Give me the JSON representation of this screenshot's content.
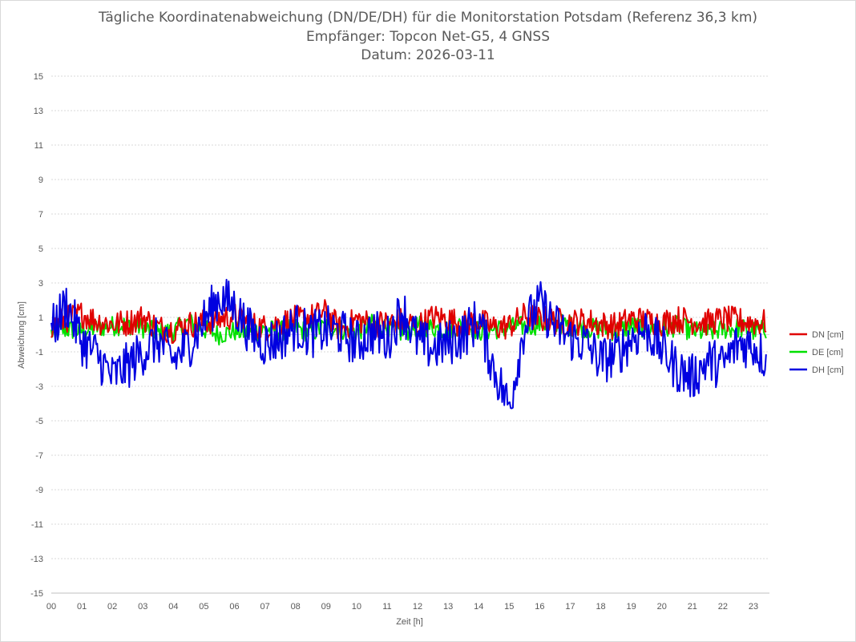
{
  "chart_data": {
    "type": "line",
    "title_lines": [
      "Tägliche Koordinatenabweichung (DN/DE/DH) für die Monitorstation Potsdam (Referenz 36,3 km)",
      "Empfänger: Topcon Net-G5, 4 GNSS",
      "Datum: 2026-03-11"
    ],
    "xlabel": "Zeit [h]",
    "ylabel": "Abweichung [cm]",
    "xlim": [
      0,
      24
    ],
    "ylim": [
      -15,
      15
    ],
    "x_ticks": [
      "00",
      "01",
      "02",
      "03",
      "04",
      "05",
      "06",
      "07",
      "08",
      "09",
      "10",
      "11",
      "12",
      "13",
      "14",
      "15",
      "16",
      "17",
      "18",
      "19",
      "20",
      "21",
      "22",
      "23"
    ],
    "y_ticks": [
      15,
      13,
      11,
      9,
      7,
      5,
      3,
      1,
      -1,
      -3,
      -5,
      -7,
      -9,
      -11,
      -13,
      -15
    ],
    "grid": "horizontal dotted",
    "legend_position": "right",
    "series": [
      {
        "name": "DN [cm]",
        "color": "#e00000",
        "x": [
          0,
          0.5,
          1,
          1.5,
          2,
          2.5,
          3,
          3.5,
          4,
          4.5,
          5,
          5.5,
          6,
          6.5,
          7,
          7.5,
          8,
          8.5,
          9,
          9.5,
          10,
          10.5,
          11,
          11.5,
          12,
          12.5,
          13,
          13.5,
          14,
          14.5,
          15,
          15.5,
          16,
          16.5,
          17,
          17.5,
          18,
          18.5,
          19,
          19.5,
          20,
          20.5,
          21,
          21.5,
          22,
          22.5,
          23,
          23.5
        ],
        "values": [
          0.5,
          0.9,
          1.2,
          0.8,
          0.6,
          0.7,
          1.0,
          0.4,
          0.3,
          0.6,
          0.7,
          0.9,
          1.1,
          0.6,
          0.4,
          0.7,
          0.9,
          1.0,
          1.3,
          0.2,
          0.9,
          0.6,
          0.7,
          0.8,
          0.5,
          1.0,
          0.9,
          0.6,
          0.8,
          0.4,
          0.5,
          1.1,
          0.9,
          0.8,
          0.7,
          0.8,
          0.6,
          0.5,
          0.9,
          0.8,
          0.7,
          0.9,
          0.8,
          0.7,
          0.9,
          0.8,
          0.7,
          0.7
        ]
      },
      {
        "name": "DE [cm]",
        "color": "#00e000",
        "x": [
          0,
          0.5,
          1,
          1.5,
          2,
          2.5,
          3,
          3.5,
          4,
          4.5,
          5,
          5.5,
          6,
          6.5,
          7,
          7.5,
          8,
          8.5,
          9,
          9.5,
          10,
          10.5,
          11,
          11.5,
          12,
          12.5,
          13,
          13.5,
          14,
          14.5,
          15,
          15.5,
          16,
          16.5,
          17,
          17.5,
          18,
          18.5,
          19,
          19.5,
          20,
          20.5,
          21,
          21.5,
          22,
          22.5,
          23,
          23.5
        ],
        "values": [
          0.1,
          0.3,
          0.2,
          0.4,
          0.5,
          0.6,
          0.4,
          0.1,
          0.2,
          0.7,
          0.3,
          0.0,
          0.2,
          0.1,
          0.3,
          0.2,
          0.4,
          0.1,
          0.5,
          0.3,
          0.2,
          0.6,
          0.4,
          0.1,
          0.5,
          0.4,
          0.3,
          0.6,
          0.2,
          0.3,
          0.4,
          0.5,
          0.6,
          0.7,
          0.5,
          0.4,
          0.3,
          0.2,
          0.5,
          0.4,
          0.3,
          0.5,
          0.2,
          0.1,
          0.3,
          0.4,
          0.2,
          0.3
        ]
      },
      {
        "name": "DH [cm]",
        "color": "#0000e0",
        "x": [
          0,
          0.5,
          1,
          1.5,
          2,
          2.5,
          3,
          3.5,
          4,
          4.5,
          5,
          5.5,
          6,
          6.5,
          7,
          7.5,
          8,
          8.5,
          9,
          9.5,
          10,
          10.5,
          11,
          11.5,
          12,
          12.5,
          13,
          13.5,
          14,
          14.5,
          15,
          15.5,
          16,
          16.5,
          17,
          17.5,
          18,
          18.5,
          19,
          19.5,
          20,
          20.5,
          21,
          21.5,
          22,
          22.5,
          23,
          23.5
        ],
        "values": [
          0.2,
          1.8,
          -0.4,
          -1.2,
          -2.5,
          -1.8,
          -1.0,
          -0.3,
          -1.5,
          -0.6,
          0.8,
          2.2,
          1.6,
          0.2,
          -0.5,
          -0.2,
          0.5,
          0.0,
          0.3,
          0.1,
          -0.5,
          0.2,
          -0.3,
          1.5,
          -0.4,
          -0.8,
          -0.5,
          0.0,
          0.9,
          -2.0,
          -4.2,
          0.5,
          1.8,
          0.5,
          -0.2,
          -0.5,
          -1.5,
          -1.2,
          -0.2,
          0.3,
          -0.8,
          -2.0,
          -2.5,
          -1.5,
          -1.8,
          -0.5,
          -0.6,
          -1.6
        ]
      }
    ]
  }
}
